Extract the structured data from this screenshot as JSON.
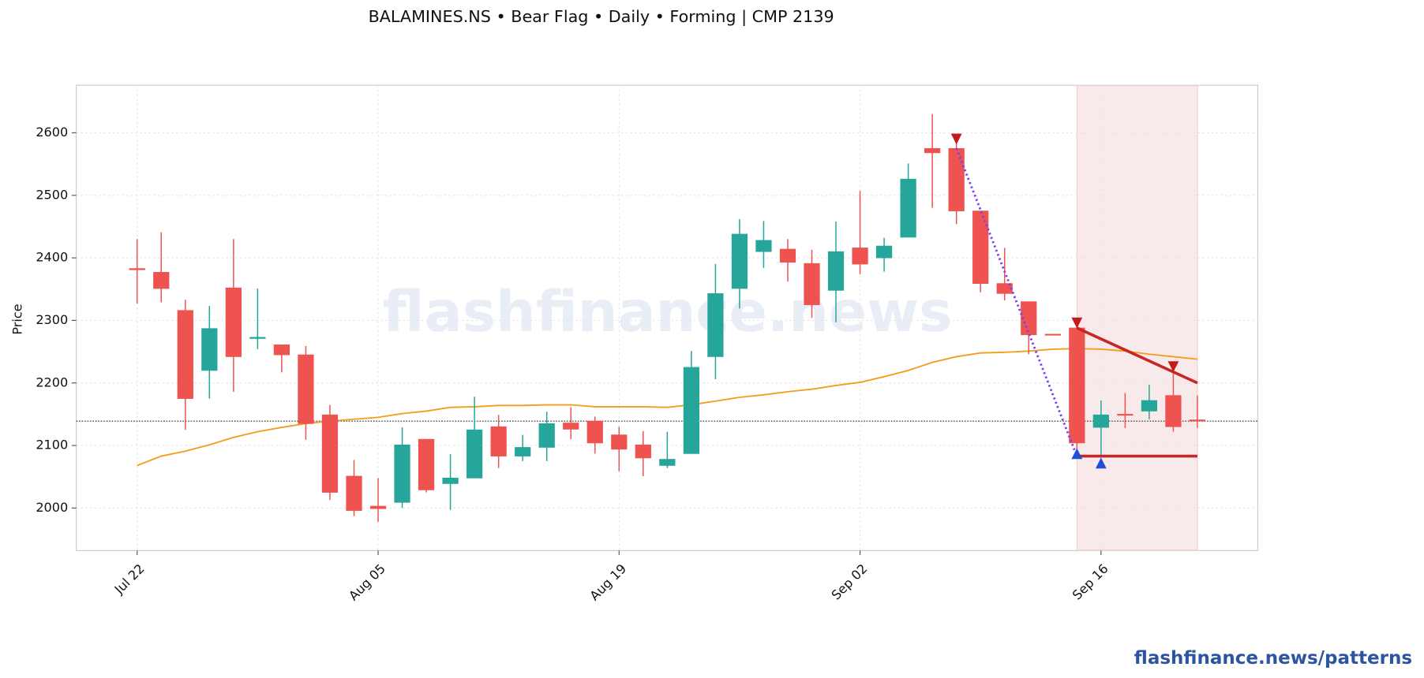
{
  "chart_data": {
    "type": "candlestick",
    "title": "BALAMINES.NS  •  Bear Flag  •  Daily  •  Forming  |  CMP 2139",
    "y_label": "Price",
    "watermark": "flashfinance.news",
    "footer": "flashfinance.news/patterns",
    "categories": [
      "Jul 22",
      null,
      null,
      null,
      null,
      null,
      null,
      null,
      null,
      null,
      "Aug 05",
      null,
      null,
      null,
      null,
      null,
      null,
      null,
      null,
      null,
      "Aug 19",
      null,
      null,
      null,
      null,
      null,
      null,
      null,
      null,
      null,
      "Sep 02",
      null,
      null,
      null,
      null,
      null,
      null,
      null,
      null,
      null,
      "Sep 16",
      null,
      null,
      null,
      null
    ],
    "open": [
      2383,
      2377,
      2316,
      2220,
      2352,
      2271,
      2261,
      2245,
      2149,
      2051,
      2003,
      2009,
      2110,
      2039,
      2048,
      2130,
      2083,
      2097,
      2136,
      2139,
      2117,
      2101,
      2068,
      2087,
      2242,
      2351,
      2410,
      2414,
      2391,
      2348,
      2416,
      2400,
      2433,
      2575,
      2575,
      2475,
      2359,
      2330,
      2278,
      2288,
      2129,
      2150,
      2155,
      2180,
      2141
    ],
    "high": [
      2430,
      2441,
      2333,
      2323,
      2430,
      2351,
      2261,
      2259,
      2165,
      2077,
      2048,
      2129,
      2110,
      2086,
      2178,
      2149,
      2117,
      2154,
      2161,
      2146,
      2130,
      2123,
      2122,
      2251,
      2390,
      2462,
      2459,
      2430,
      2413,
      2458,
      2507,
      2432,
      2551,
      2630,
      2594,
      2475,
      2416,
      2330,
      2278,
      2300,
      2172,
      2184,
      2197,
      2220,
      2180
    ],
    "low": [
      2327,
      2329,
      2125,
      2175,
      2186,
      2254,
      2217,
      2109,
      2013,
      1987,
      1978,
      2000,
      2025,
      1997,
      2048,
      2064,
      2075,
      2075,
      2110,
      2087,
      2059,
      2051,
      2064,
      2087,
      2206,
      2319,
      2384,
      2362,
      2304,
      2297,
      2374,
      2378,
      2433,
      2480,
      2454,
      2345,
      2332,
      2246,
      2277,
      2080,
      2081,
      2128,
      2142,
      2122,
      2128
    ],
    "close": [
      2381,
      2351,
      2175,
      2287,
      2242,
      2273,
      2245,
      2135,
      2025,
      1996,
      1999,
      2101,
      2029,
      2048,
      2125,
      2083,
      2097,
      2135,
      2126,
      2104,
      2094,
      2080,
      2078,
      2225,
      2343,
      2438,
      2428,
      2393,
      2325,
      2410,
      2390,
      2419,
      2526,
      2568,
      2475,
      2359,
      2343,
      2277,
      2277,
      2104,
      2149,
      2149,
      2172,
      2130,
      2140
    ],
    "up_color": "#26a69a",
    "down_color": "#ef5350",
    "ma": {
      "color": "#f59c1a",
      "values": [
        2068,
        2083,
        2091,
        2101,
        2113,
        2122,
        2129,
        2135,
        2139,
        2142,
        2145,
        2151,
        2155,
        2161,
        2162,
        2164,
        2164,
        2165,
        2165,
        2162,
        2162,
        2162,
        2161,
        2165,
        2171,
        2177,
        2181,
        2186,
        2190,
        2196,
        2201,
        2210,
        2220,
        2233,
        2242,
        2248,
        2249,
        2251,
        2254,
        2255,
        2254,
        2251,
        2246,
        2242,
        2238
      ]
    },
    "cmp_line": 2139,
    "shade": {
      "x": [
        39,
        44
      ],
      "color": "#f8eaea"
    },
    "lines": [
      {
        "color": "#7b3ff2",
        "dash": true,
        "x": [
          34,
          39
        ],
        "y": [
          2575,
          2083
        ]
      },
      {
        "color": "#c62828",
        "dash": false,
        "x": [
          39,
          44
        ],
        "y": [
          2288,
          2200
        ]
      },
      {
        "color": "#c62828",
        "dash": false,
        "x": [
          39,
          44
        ],
        "y": [
          2083,
          2083
        ]
      }
    ],
    "markers": [
      {
        "shape": "down",
        "color": "#c41a1a",
        "x": [
          34,
          39,
          43
        ],
        "y": [
          2590,
          2296,
          2226
        ]
      },
      {
        "shape": "up",
        "color": "#1f4fd8",
        "x": [
          39,
          40
        ],
        "y": [
          2087,
          2072
        ]
      }
    ],
    "ylim": [
      1932,
      2676
    ],
    "yticks": [
      2000,
      2100,
      2200,
      2300,
      2400,
      2500,
      2600
    ],
    "grid": true
  }
}
